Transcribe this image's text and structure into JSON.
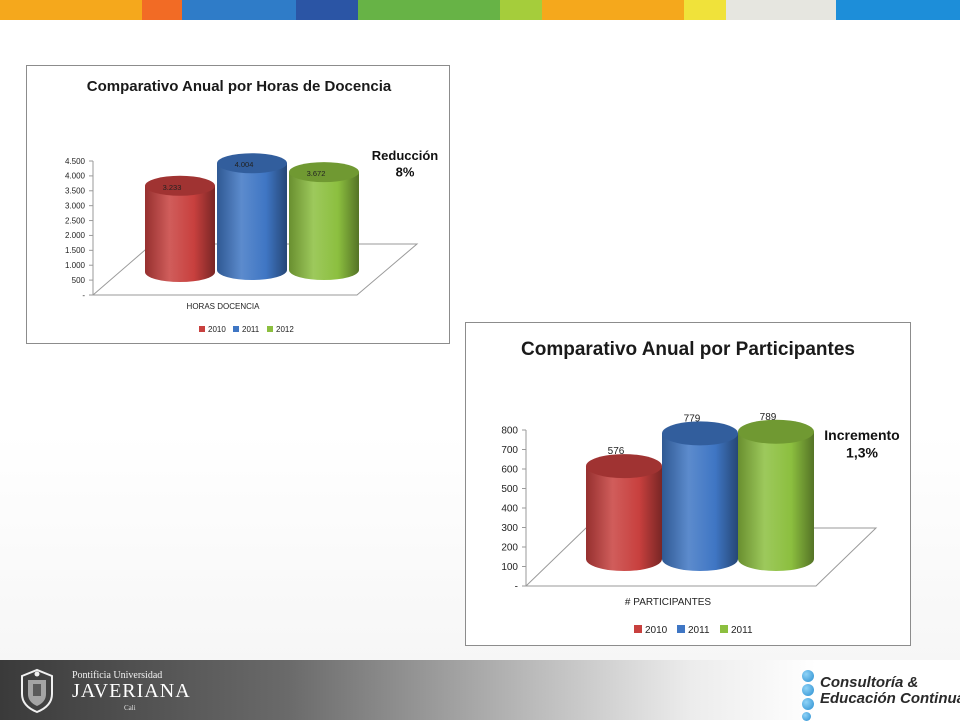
{
  "colors": {
    "stripe": [
      "#f5a81c",
      "#f26b25",
      "#2f7cc8",
      "#2b55a5",
      "#67b346",
      "#a5cd3b",
      "#f5a81c",
      "#f0e23a",
      "#e6e6e0",
      "#1d8ed9"
    ],
    "series2010": "#c8403e",
    "series2011": "#3f76c4",
    "series2012": "#8cbf3f"
  },
  "chart_data": [
    {
      "type": "bar",
      "title": "Comparativo Anual  por  Horas de Docencia",
      "categories": [
        "HORAS DOCENCIA"
      ],
      "series": [
        {
          "name": "2010",
          "values": [
            3233
          ],
          "label": "3.233"
        },
        {
          "name": "2011",
          "values": [
            4004
          ],
          "label": "4.004"
        },
        {
          "name": "2012",
          "values": [
            3672
          ],
          "label": "3.672"
        }
      ],
      "ylim": [
        0,
        4500
      ],
      "yticks": [
        "-",
        "500",
        "1.000",
        "1.500",
        "2.000",
        "2.500",
        "3.000",
        "3.500",
        "4.000",
        "4.500"
      ],
      "xlabel": "HORAS DOCENCIA",
      "annotation": [
        "Reducción",
        "8%"
      ],
      "legend": "bottom"
    },
    {
      "type": "bar",
      "title": "Comparativo Anual  por Participantes",
      "categories": [
        "# PARTICIPANTES"
      ],
      "series": [
        {
          "name": "2010",
          "values": [
            576
          ],
          "label": "576"
        },
        {
          "name": "2011",
          "values": [
            779
          ],
          "label": "779"
        },
        {
          "name": "2011",
          "values": [
            789
          ],
          "label": "789"
        }
      ],
      "ylim": [
        0,
        800
      ],
      "yticks": [
        "-",
        "100",
        "200",
        "300",
        "400",
        "500",
        "600",
        "700",
        "800"
      ],
      "xlabel": "# PARTICIPANTES",
      "annotation": [
        "Incremento",
        "1,3%"
      ],
      "legend": "bottom"
    }
  ],
  "footer": {
    "university_small": "Pontificia Universidad",
    "university_big": "JAVERIANA",
    "university_city": "Cali",
    "unit_line1": "Consultoría &",
    "unit_line2": "Educación Continua"
  }
}
